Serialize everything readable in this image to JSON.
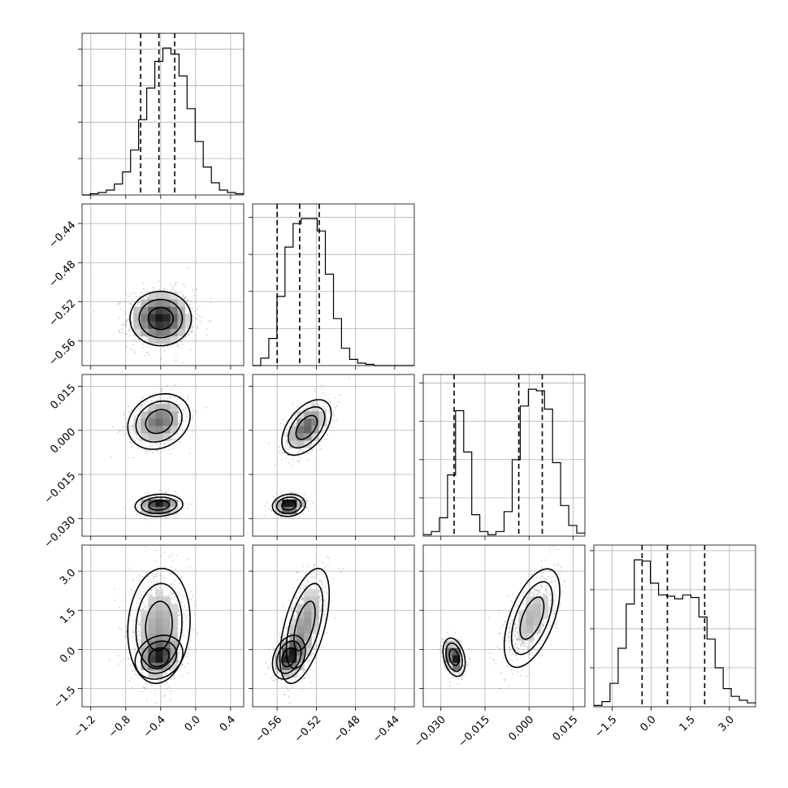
{
  "chart_data": {
    "type": "corner",
    "grid": true,
    "parameters": [
      {
        "range": [
          -1.3,
          0.55
        ],
        "ticks": [
          -1.2,
          -0.8,
          -0.4,
          0.0,
          0.4
        ],
        "tick_labels": [
          "−1.2",
          "−0.8",
          "−0.4",
          "0.0",
          "0.4"
        ]
      },
      {
        "range": [
          -0.585,
          -0.42
        ],
        "ticks": [
          -0.56,
          -0.52,
          -0.48,
          -0.44
        ],
        "tick_labels": [
          "−0.56",
          "−0.52",
          "−0.48",
          "−0.44"
        ]
      },
      {
        "range": [
          -0.036,
          0.019
        ],
        "ticks": [
          -0.03,
          -0.015,
          0.0,
          0.015
        ],
        "tick_labels": [
          "−0.030",
          "−0.015",
          "0.000",
          "0.015"
        ]
      },
      {
        "range": [
          -2.2,
          4.0
        ],
        "ticks": [
          -1.5,
          0.0,
          1.5,
          3.0
        ],
        "tick_labels": [
          "−1.5",
          "0.0",
          "1.5",
          "3.0"
        ]
      }
    ],
    "quantiles": [
      [
        -0.63,
        -0.42,
        -0.24
      ],
      [
        -0.56,
        -0.537,
        -0.517
      ],
      [
        -0.0255,
        -0.0035,
        0.0045
      ],
      [
        -0.35,
        0.62,
        2.05
      ]
    ],
    "histograms": [
      {
        "edges_start": -1.3,
        "edges_end": 0.55,
        "counts": [
          0,
          1,
          2,
          4,
          9,
          19,
          37,
          62,
          88,
          110,
          121,
          116,
          98,
          71,
          44,
          23,
          10,
          4,
          2,
          1
        ]
      },
      {
        "edges_start": -0.585,
        "edges_end": -0.42,
        "counts": [
          0,
          6,
          22,
          56,
          96,
          115,
          119,
          119,
          109,
          74,
          38,
          14,
          5,
          2,
          1,
          0,
          0,
          0,
          0,
          0
        ]
      },
      {
        "edges_start": -0.036,
        "edges_end": 0.019,
        "counts": [
          1,
          3,
          12,
          40,
          82,
          55,
          14,
          3,
          1,
          3,
          16,
          50,
          85,
          96,
          95,
          83,
          48,
          20,
          7,
          2
        ]
      },
      {
        "edges_start": -2.2,
        "edges_end": 4.0,
        "counts": [
          1,
          4,
          18,
          45,
          79,
          113,
          112,
          95,
          86,
          85,
          83,
          86,
          84,
          69,
          52,
          30,
          14,
          8,
          5,
          3
        ]
      }
    ],
    "modes": [
      [
        {
          "center": [
            -0.4,
            -0.537
          ],
          "spread": [
            0.19,
            0.015
          ],
          "rho": 0.0,
          "weight": 1.0
        }
      ],
      [
        {
          "center": [
            -0.42,
            0.003
          ],
          "spread": [
            0.17,
            0.0045
          ],
          "rho": 0.2,
          "weight": 0.67
        },
        {
          "center": [
            -0.42,
            -0.0255
          ],
          "spread": [
            0.13,
            0.0018
          ],
          "rho": 0.1,
          "weight": 0.33
        }
      ],
      [
        {
          "center": [
            -0.53,
            0.001
          ],
          "spread": [
            0.012,
            0.0045
          ],
          "rho": 0.5,
          "weight": 0.67
        },
        {
          "center": [
            -0.548,
            -0.0255
          ],
          "spread": [
            0.008,
            0.0018
          ],
          "rho": 0.1,
          "weight": 0.33
        }
      ],
      [
        {
          "center": [
            -0.42,
            0.9
          ],
          "spread": [
            0.17,
            1.05
          ],
          "rho": 0.1,
          "weight": 0.67
        },
        {
          "center": [
            -0.42,
            -0.3
          ],
          "spread": [
            0.13,
            0.4
          ],
          "rho": 0.2,
          "weight": 0.33
        }
      ],
      [
        {
          "center": [
            -0.532,
            0.9
          ],
          "spread": [
            0.012,
            1.05
          ],
          "rho": 0.55,
          "weight": 0.67
        },
        {
          "center": [
            -0.548,
            -0.3
          ],
          "spread": [
            0.008,
            0.4
          ],
          "rho": 0.3,
          "weight": 0.33
        }
      ],
      [
        {
          "center": [
            0.001,
            1.2
          ],
          "spread": [
            0.0045,
            0.9
          ],
          "rho": 0.55,
          "weight": 0.67
        },
        {
          "center": [
            -0.0255,
            -0.3
          ],
          "spread": [
            0.0018,
            0.35
          ],
          "rho": -0.3,
          "weight": 0.33
        }
      ]
    ]
  }
}
